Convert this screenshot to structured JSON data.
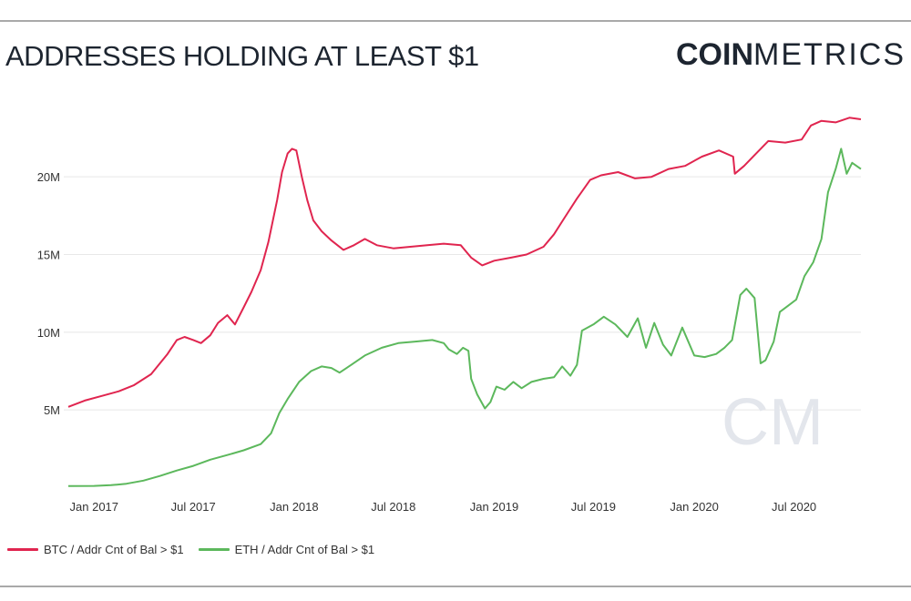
{
  "header": {
    "title": "ADDRESSES HOLDING AT LEAST $1",
    "logo_bold": "COIN",
    "logo_light": "METRICS",
    "watermark": "CM"
  },
  "colors": {
    "btc": "#e0254f",
    "eth": "#5cb85c",
    "grid": "#e8e8e8",
    "text": "#333333",
    "watermark": "#e3e6ec"
  },
  "chart_data": {
    "type": "line",
    "title": "ADDRESSES HOLDING AT LEAST $1",
    "xlabel": "",
    "ylabel": "",
    "x_range": [
      "2016-11-15",
      "2020-10-31"
    ],
    "ylim": [
      0,
      24500000
    ],
    "grid": true,
    "legend_position": "bottom-left",
    "x_ticks": [
      {
        "date": "2017-01-01",
        "label": "Jan 2017"
      },
      {
        "date": "2017-07-01",
        "label": "Jul 2017"
      },
      {
        "date": "2018-01-01",
        "label": "Jan 2018"
      },
      {
        "date": "2018-07-01",
        "label": "Jul 2018"
      },
      {
        "date": "2019-01-01",
        "label": "Jan 2019"
      },
      {
        "date": "2019-07-01",
        "label": "Jul 2019"
      },
      {
        "date": "2020-01-01",
        "label": "Jan 2020"
      },
      {
        "date": "2020-07-01",
        "label": "Jul 2020"
      }
    ],
    "y_ticks": [
      {
        "value": 5000000,
        "label": "5M"
      },
      {
        "value": 10000000,
        "label": "10M"
      },
      {
        "value": 15000000,
        "label": "15M"
      },
      {
        "value": 20000000,
        "label": "20M"
      }
    ],
    "series": [
      {
        "name": "BTC / Addr Cnt of Bal > $1",
        "color": "#e0254f",
        "points": [
          [
            "2016-11-15",
            5200000
          ],
          [
            "2016-12-15",
            5600000
          ],
          [
            "2017-01-15",
            5900000
          ],
          [
            "2017-02-15",
            6200000
          ],
          [
            "2017-03-15",
            6600000
          ],
          [
            "2017-04-15",
            7300000
          ],
          [
            "2017-05-15",
            8600000
          ],
          [
            "2017-06-01",
            9500000
          ],
          [
            "2017-06-15",
            9700000
          ],
          [
            "2017-07-01",
            9500000
          ],
          [
            "2017-07-15",
            9300000
          ],
          [
            "2017-08-01",
            9800000
          ],
          [
            "2017-08-15",
            10600000
          ],
          [
            "2017-09-01",
            11100000
          ],
          [
            "2017-09-15",
            10500000
          ],
          [
            "2017-10-01",
            11600000
          ],
          [
            "2017-10-15",
            12600000
          ],
          [
            "2017-11-01",
            14000000
          ],
          [
            "2017-11-15",
            15800000
          ],
          [
            "2017-12-01",
            18500000
          ],
          [
            "2017-12-10",
            20300000
          ],
          [
            "2017-12-20",
            21500000
          ],
          [
            "2017-12-28",
            21800000
          ],
          [
            "2018-01-05",
            21700000
          ],
          [
            "2018-01-15",
            20000000
          ],
          [
            "2018-01-25",
            18500000
          ],
          [
            "2018-02-05",
            17200000
          ],
          [
            "2018-02-20",
            16500000
          ],
          [
            "2018-03-10",
            15900000
          ],
          [
            "2018-04-01",
            15300000
          ],
          [
            "2018-04-20",
            15600000
          ],
          [
            "2018-05-10",
            16000000
          ],
          [
            "2018-06-01",
            15600000
          ],
          [
            "2018-07-01",
            15400000
          ],
          [
            "2018-08-01",
            15500000
          ],
          [
            "2018-09-01",
            15600000
          ],
          [
            "2018-10-01",
            15700000
          ],
          [
            "2018-11-01",
            15600000
          ],
          [
            "2018-11-20",
            14800000
          ],
          [
            "2018-12-10",
            14300000
          ],
          [
            "2019-01-01",
            14600000
          ],
          [
            "2019-02-01",
            14800000
          ],
          [
            "2019-03-01",
            15000000
          ],
          [
            "2019-04-01",
            15500000
          ],
          [
            "2019-04-20",
            16300000
          ],
          [
            "2019-05-10",
            17400000
          ],
          [
            "2019-06-01",
            18600000
          ],
          [
            "2019-06-25",
            19800000
          ],
          [
            "2019-07-15",
            20100000
          ],
          [
            "2019-08-15",
            20300000
          ],
          [
            "2019-09-15",
            19900000
          ],
          [
            "2019-10-15",
            20000000
          ],
          [
            "2019-11-15",
            20500000
          ],
          [
            "2019-12-15",
            20700000
          ],
          [
            "2020-01-15",
            21300000
          ],
          [
            "2020-02-15",
            21700000
          ],
          [
            "2020-03-12",
            21300000
          ],
          [
            "2020-03-15",
            20200000
          ],
          [
            "2020-04-01",
            20700000
          ],
          [
            "2020-04-20",
            21400000
          ],
          [
            "2020-05-15",
            22300000
          ],
          [
            "2020-06-15",
            22200000
          ],
          [
            "2020-07-15",
            22400000
          ],
          [
            "2020-08-01",
            23300000
          ],
          [
            "2020-08-20",
            23600000
          ],
          [
            "2020-09-15",
            23500000
          ],
          [
            "2020-10-10",
            23800000
          ],
          [
            "2020-10-31",
            23700000
          ]
        ]
      },
      {
        "name": "ETH / Addr Cnt of Bal > $1",
        "color": "#5cb85c",
        "points": [
          [
            "2016-11-15",
            100000
          ],
          [
            "2017-01-01",
            110000
          ],
          [
            "2017-02-01",
            160000
          ],
          [
            "2017-03-01",
            250000
          ],
          [
            "2017-04-01",
            450000
          ],
          [
            "2017-05-01",
            750000
          ],
          [
            "2017-06-01",
            1100000
          ],
          [
            "2017-07-01",
            1400000
          ],
          [
            "2017-08-01",
            1800000
          ],
          [
            "2017-09-01",
            2100000
          ],
          [
            "2017-10-01",
            2400000
          ],
          [
            "2017-11-01",
            2800000
          ],
          [
            "2017-11-20",
            3500000
          ],
          [
            "2017-12-05",
            4800000
          ],
          [
            "2017-12-20",
            5700000
          ],
          [
            "2018-01-10",
            6800000
          ],
          [
            "2018-02-01",
            7500000
          ],
          [
            "2018-02-20",
            7800000
          ],
          [
            "2018-03-10",
            7700000
          ],
          [
            "2018-03-25",
            7400000
          ],
          [
            "2018-04-15",
            7900000
          ],
          [
            "2018-05-10",
            8500000
          ],
          [
            "2018-06-10",
            9000000
          ],
          [
            "2018-07-10",
            9300000
          ],
          [
            "2018-08-10",
            9400000
          ],
          [
            "2018-09-10",
            9500000
          ],
          [
            "2018-10-01",
            9300000
          ],
          [
            "2018-10-10",
            8900000
          ],
          [
            "2018-10-25",
            8600000
          ],
          [
            "2018-11-05",
            9000000
          ],
          [
            "2018-11-15",
            8800000
          ],
          [
            "2018-11-20",
            7000000
          ],
          [
            "2018-12-01",
            6000000
          ],
          [
            "2018-12-15",
            5100000
          ],
          [
            "2018-12-25",
            5500000
          ],
          [
            "2019-01-05",
            6500000
          ],
          [
            "2019-01-20",
            6300000
          ],
          [
            "2019-02-05",
            6800000
          ],
          [
            "2019-02-20",
            6400000
          ],
          [
            "2019-03-10",
            6800000
          ],
          [
            "2019-04-01",
            7000000
          ],
          [
            "2019-04-20",
            7100000
          ],
          [
            "2019-05-05",
            7800000
          ],
          [
            "2019-05-20",
            7200000
          ],
          [
            "2019-06-01",
            7900000
          ],
          [
            "2019-06-10",
            10100000
          ],
          [
            "2019-07-01",
            10500000
          ],
          [
            "2019-07-20",
            11000000
          ],
          [
            "2019-08-10",
            10500000
          ],
          [
            "2019-09-01",
            9700000
          ],
          [
            "2019-09-20",
            10900000
          ],
          [
            "2019-10-05",
            9000000
          ],
          [
            "2019-10-20",
            10600000
          ],
          [
            "2019-11-05",
            9200000
          ],
          [
            "2019-11-20",
            8500000
          ],
          [
            "2019-12-10",
            10300000
          ],
          [
            "2020-01-01",
            8500000
          ],
          [
            "2020-01-20",
            8400000
          ],
          [
            "2020-02-10",
            8600000
          ],
          [
            "2020-02-25",
            9000000
          ],
          [
            "2020-03-10",
            9500000
          ],
          [
            "2020-03-25",
            12400000
          ],
          [
            "2020-04-05",
            12800000
          ],
          [
            "2020-04-20",
            12200000
          ],
          [
            "2020-05-01",
            8000000
          ],
          [
            "2020-05-10",
            8200000
          ],
          [
            "2020-05-25",
            9400000
          ],
          [
            "2020-06-05",
            11300000
          ],
          [
            "2020-06-20",
            11700000
          ],
          [
            "2020-07-05",
            12100000
          ],
          [
            "2020-07-20",
            13600000
          ],
          [
            "2020-08-05",
            14500000
          ],
          [
            "2020-08-20",
            16000000
          ],
          [
            "2020-09-01",
            19000000
          ],
          [
            "2020-09-15",
            20500000
          ],
          [
            "2020-09-25",
            21800000
          ],
          [
            "2020-10-05",
            20200000
          ],
          [
            "2020-10-15",
            20900000
          ],
          [
            "2020-10-31",
            20500000
          ]
        ]
      }
    ]
  }
}
